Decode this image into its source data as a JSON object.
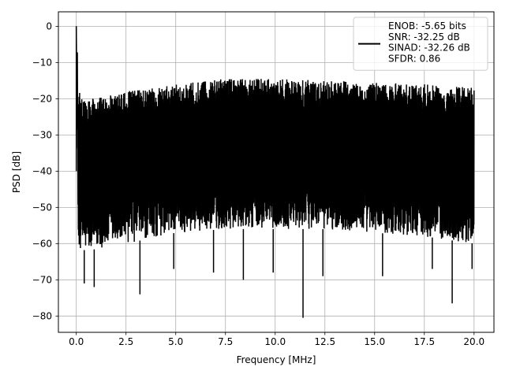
{
  "chart_data": {
    "type": "line",
    "title": "",
    "xlabel": "Frequency [MHz]",
    "ylabel": "PSD [dB]",
    "xlim": [
      -0.9,
      21
    ],
    "ylim": [
      -84.5,
      4
    ],
    "xticks": [
      0.0,
      2.5,
      5.0,
      7.5,
      10.0,
      12.5,
      15.0,
      17.5,
      20.0
    ],
    "xtick_labels": [
      "0.0",
      "2.5",
      "5.0",
      "7.5",
      "10.0",
      "12.5",
      "15.0",
      "17.5",
      "20.0"
    ],
    "yticks": [
      0,
      -10,
      -20,
      -30,
      -40,
      -50,
      -60,
      -70,
      -80
    ],
    "ytick_labels": [
      "0",
      "−10",
      "−20",
      "−30",
      "−40",
      "−50",
      "−60",
      "−70",
      "−80"
    ],
    "grid": true,
    "legend_position": "top-right",
    "series": [
      {
        "name": "ENOB: -5.65 bits\nSNR: -32.25 dB\nSINAD: -32.26 dB\nSFDR: 0.86",
        "color": "#000000",
        "peak": {
          "x": 0.0,
          "y": 0
        },
        "x_range": [
          0.0,
          20.0
        ],
        "upper_envelope": {
          "x": [
            0.0,
            0.1,
            0.5,
            1.0,
            2.5,
            5.0,
            7.5,
            10.0,
            12.5,
            15.0,
            17.5,
            20.0
          ],
          "y": [
            0,
            -18,
            -20,
            -20,
            -18,
            -16,
            -14.5,
            -14.5,
            -15,
            -15.5,
            -16,
            -17
          ]
        },
        "lower_envelope": {
          "x": [
            0.0,
            0.5,
            2.5,
            5.0,
            7.5,
            10.0,
            12.5,
            15.0,
            17.5,
            20.0
          ],
          "y": [
            -61,
            -62,
            -60,
            -57,
            -56,
            -56,
            -56,
            -57,
            -58,
            -60
          ]
        },
        "deep_nulls": [
          {
            "x": 0.4,
            "y": -71
          },
          {
            "x": 0.9,
            "y": -72
          },
          {
            "x": 3.2,
            "y": -74
          },
          {
            "x": 4.9,
            "y": -67
          },
          {
            "x": 6.9,
            "y": -68
          },
          {
            "x": 8.4,
            "y": -70
          },
          {
            "x": 9.9,
            "y": -68
          },
          {
            "x": 11.4,
            "y": -80.5
          },
          {
            "x": 12.4,
            "y": -69
          },
          {
            "x": 15.4,
            "y": -69
          },
          {
            "x": 17.9,
            "y": -67
          },
          {
            "x": 18.9,
            "y": -76.5
          },
          {
            "x": 19.9,
            "y": -67
          }
        ]
      }
    ]
  }
}
